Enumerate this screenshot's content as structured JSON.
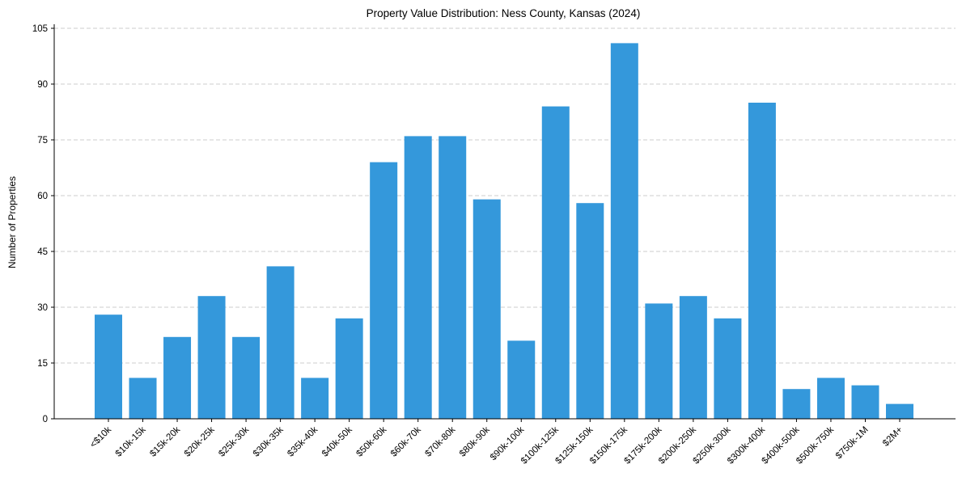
{
  "chart_data": {
    "type": "bar",
    "title": "Property Value Distribution: Ness County, Kansas (2024)",
    "xlabel": "",
    "ylabel": "Number of Properties",
    "categories": [
      "<$10k",
      "$10k-15k",
      "$15k-20k",
      "$20k-25k",
      "$25k-30k",
      "$30k-35k",
      "$35k-40k",
      "$40k-50k",
      "$50k-60k",
      "$60k-70k",
      "$70k-80k",
      "$80k-90k",
      "$90k-100k",
      "$100k-125k",
      "$125k-150k",
      "$150k-175k",
      "$175k-200k",
      "$200k-250k",
      "$250k-300k",
      "$300k-400k",
      "$400k-500k",
      "$500k-750k",
      "$750k-1M",
      "$2M+"
    ],
    "values": [
      28,
      11,
      22,
      33,
      22,
      41,
      11,
      27,
      69,
      76,
      76,
      59,
      21,
      84,
      58,
      101,
      31,
      33,
      27,
      85,
      8,
      11,
      9,
      4
    ],
    "ylim": [
      0,
      105
    ],
    "yticks": [
      0,
      15,
      30,
      45,
      60,
      75,
      90,
      105
    ],
    "grid": "y",
    "bar_color": "#3498db"
  }
}
